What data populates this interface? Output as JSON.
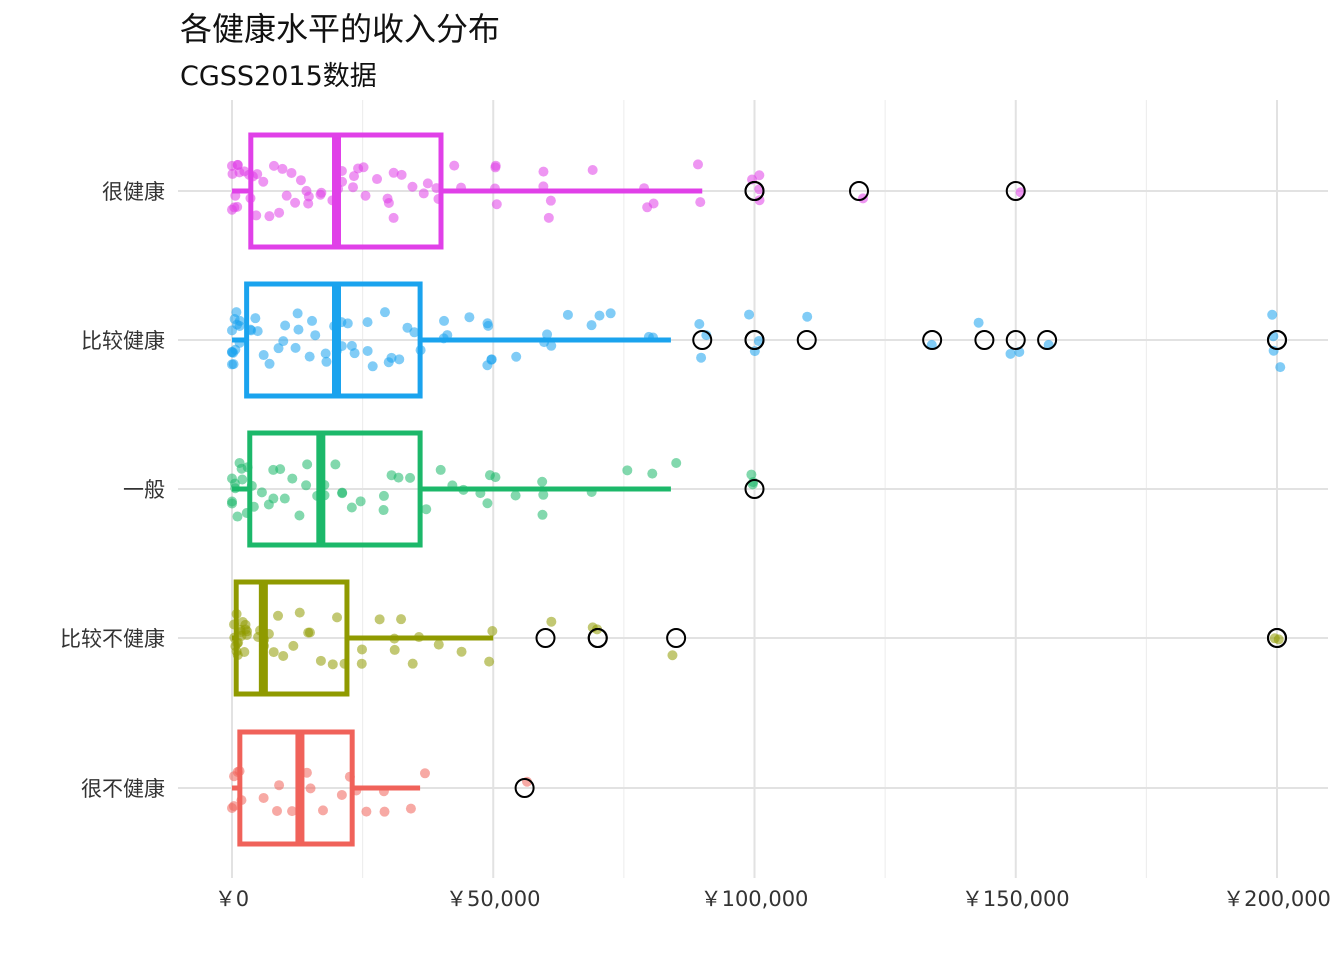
{
  "chart_data": {
    "type": "boxplot",
    "title": "各健康水平的收入分布",
    "subtitle": "CGSS2015数据",
    "xlabel": "",
    "ylabel": "",
    "orientation": "horizontal",
    "xlim": [
      -9000,
      210000
    ],
    "grid": true,
    "legend": "none",
    "x_ticks": [
      0,
      50000,
      100000,
      150000,
      200000
    ],
    "x_tick_labels": [
      "￥0",
      "￥50,000",
      "￥100,000",
      "￥150,000",
      "￥200,000"
    ],
    "categories": [
      "很健康",
      "比较健康",
      "一般",
      "比较不健康",
      "很不健康"
    ],
    "series": [
      {
        "name": "很健康",
        "color": "#e040e8",
        "box": {
          "whisker_low": 0,
          "q1": 3600,
          "median": 20000,
          "q3": 40000,
          "whisker_high": 90000
        },
        "outliers": [
          100000,
          100000,
          120000,
          150000
        ],
        "points": [
          0,
          0,
          0,
          0,
          0,
          500,
          1000,
          1200,
          1500,
          2000,
          2400,
          3000,
          3600,
          4000,
          4800,
          5000,
          6000,
          7000,
          8000,
          10000,
          10000,
          12000,
          12000,
          12000,
          14000,
          15000,
          15000,
          18000,
          18000,
          20000,
          20000,
          20000,
          22000,
          24000,
          24000,
          24000,
          25000,
          25000,
          28000,
          30000,
          30000,
          30000,
          30000,
          32000,
          35000,
          36000,
          38000,
          40000,
          40000,
          42000,
          45000,
          50000,
          50000,
          50000,
          50000,
          60000,
          60000,
          60000,
          60000,
          70000,
          80000,
          80000,
          80000,
          90000,
          90000,
          100000,
          100000,
          100000,
          100000,
          120000,
          150000
        ]
      },
      {
        "name": "比较健康",
        "color": "#1aa3ee",
        "box": {
          "whisker_low": 0,
          "q1": 2800,
          "median": 20000,
          "q3": 36000,
          "whisker_high": 84000
        },
        "outliers": [
          90000,
          100000,
          100000,
          110000,
          134000,
          144000,
          150000,
          156000,
          200000,
          200000
        ],
        "points": [
          0,
          0,
          0,
          0,
          0,
          0,
          500,
          800,
          1000,
          1200,
          1500,
          2000,
          2400,
          3000,
          3600,
          4000,
          5000,
          6000,
          7200,
          8000,
          10000,
          10000,
          12000,
          12000,
          12000,
          14000,
          15000,
          15000,
          18000,
          18000,
          20000,
          20000,
          20000,
          20000,
          22000,
          24000,
          24000,
          25000,
          26000,
          28000,
          30000,
          30000,
          30000,
          32000,
          34000,
          36000,
          36000,
          40000,
          40000,
          42000,
          45000,
          48000,
          50000,
          50000,
          50000,
          50000,
          55000,
          60000,
          60000,
          60000,
          65000,
          70000,
          70000,
          72000,
          80000,
          80000,
          90000,
          90000,
          90000,
          100000,
          100000,
          100000,
          110000,
          134000,
          144000,
          150000,
          150000,
          156000,
          200000,
          200000,
          200000,
          200000
        ]
      },
      {
        "name": "一般",
        "color": "#1cb86a",
        "box": {
          "whisker_low": 0,
          "q1": 3400,
          "median": 17000,
          "q3": 36000,
          "whisker_high": 84000
        },
        "outliers": [
          100000
        ],
        "points": [
          0,
          0,
          0,
          0,
          0,
          500,
          1000,
          1200,
          2000,
          2400,
          3000,
          3600,
          4000,
          5000,
          6000,
          7000,
          8000,
          10000,
          10000,
          12000,
          12000,
          14000,
          15000,
          16000,
          18000,
          18000,
          20000,
          20000,
          22000,
          24000,
          25000,
          28000,
          30000,
          30000,
          32000,
          35000,
          36000,
          40000,
          42000,
          45000,
          48000,
          50000,
          50000,
          50000,
          55000,
          60000,
          60000,
          60000,
          70000,
          75000,
          80000,
          84000,
          100000,
          100000,
          100000
        ]
      },
      {
        "name": "比较不健康",
        "color": "#8f9a00",
        "box": {
          "whisker_low": 0,
          "q1": 800,
          "median": 6000,
          "q3": 22000,
          "whisker_high": 50000
        },
        "outliers": [
          60000,
          70000,
          70000,
          85000,
          200000,
          200000
        ],
        "points": [
          0,
          0,
          0,
          0,
          0,
          0,
          300,
          500,
          800,
          1000,
          1200,
          1500,
          2000,
          2400,
          3000,
          3600,
          4000,
          5000,
          6000,
          6000,
          7000,
          8000,
          9000,
          10000,
          10000,
          12000,
          14000,
          15000,
          16000,
          18000,
          20000,
          20000,
          22000,
          24000,
          25000,
          28000,
          30000,
          30000,
          32000,
          35000,
          36000,
          40000,
          45000,
          50000,
          50000,
          60000,
          70000,
          70000,
          85000,
          200000,
          200000
        ]
      },
      {
        "name": "很不健康",
        "color": "#f0625a",
        "box": {
          "whisker_low": 0,
          "q1": 1500,
          "median": 13000,
          "q3": 23000,
          "whisker_high": 36000
        },
        "outliers": [
          56000
        ],
        "points": [
          0,
          0,
          0,
          1000,
          2000,
          3000,
          5000,
          8000,
          10000,
          12000,
          14000,
          16000,
          18000,
          20000,
          22000,
          24000,
          25000,
          28000,
          30000,
          35000,
          36000,
          56000
        ]
      }
    ]
  }
}
